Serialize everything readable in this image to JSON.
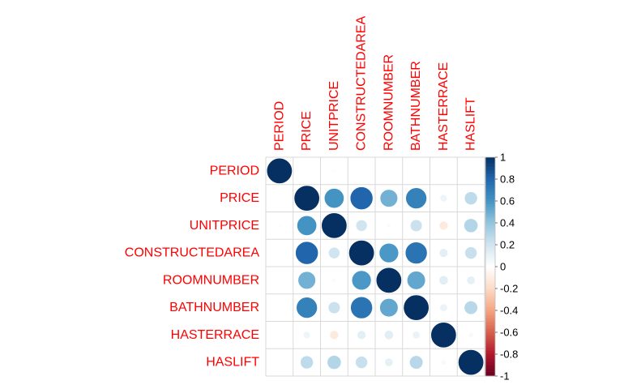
{
  "chart_data": {
    "type": "heatmap",
    "subtype": "correlation-circle-matrix",
    "title": "",
    "variables": [
      "PERIOD",
      "PRICE",
      "UNITPRICE",
      "CONSTRUCTEDAREA",
      "ROOMNUMBER",
      "BATHNUMBER",
      "HASTERRACE",
      "HASLIFT"
    ],
    "matrix": [
      [
        1.0,
        0.0,
        0.02,
        0.01,
        0.01,
        0.01,
        0.0,
        0.01
      ],
      [
        0.0,
        1.0,
        0.6,
        0.8,
        0.48,
        0.68,
        0.08,
        0.26
      ],
      [
        0.02,
        0.6,
        1.0,
        0.2,
        0.03,
        0.22,
        -0.12,
        0.3
      ],
      [
        0.01,
        0.8,
        0.2,
        1.0,
        0.58,
        0.74,
        0.12,
        0.23
      ],
      [
        0.01,
        0.48,
        0.03,
        0.58,
        1.0,
        0.52,
        0.13,
        0.11
      ],
      [
        0.01,
        0.68,
        0.22,
        0.74,
        0.52,
        1.0,
        0.09,
        0.28
      ],
      [
        0.0,
        0.08,
        -0.12,
        0.12,
        0.13,
        0.09,
        1.0,
        0.04
      ],
      [
        0.01,
        0.26,
        0.3,
        0.23,
        0.11,
        0.28,
        0.04,
        1.0
      ]
    ],
    "colorbar": {
      "min": -1,
      "max": 1,
      "tick_labels": [
        "1",
        "0.8",
        "0.6",
        "0.4",
        "0.2",
        "0",
        "-0.2",
        "-0.4",
        "-0.6",
        "-0.8",
        "-1"
      ],
      "tick_values": [
        1,
        0.8,
        0.6,
        0.4,
        0.2,
        0,
        -0.2,
        -0.4,
        -0.6,
        -0.8,
        -1
      ],
      "colors": [
        "#67001F",
        "#B2182B",
        "#D6604D",
        "#F4A582",
        "#FDDBC7",
        "#FFFFFF",
        "#D1E5F0",
        "#92C5DE",
        "#4393C3",
        "#2166AC",
        "#053061"
      ]
    },
    "label_color": "#FF0000",
    "grid": true,
    "legend_position": "right"
  }
}
